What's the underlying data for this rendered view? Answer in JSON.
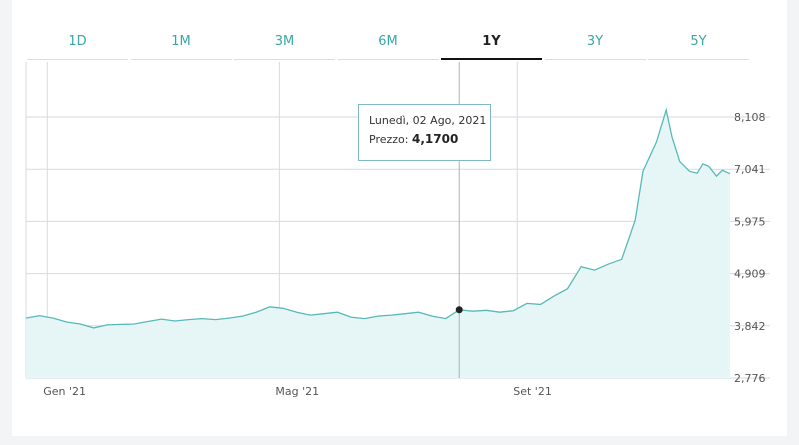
{
  "tabs": [
    "1D",
    "1M",
    "3M",
    "6M",
    "1Y",
    "3Y",
    "5Y"
  ],
  "active_tab": "1Y",
  "tooltip": {
    "date": "Lunedì, 02 Ago, 2021",
    "price_label": "Prezzo:",
    "price_value": "4,1700"
  },
  "colors": {
    "line": "#58b9b9",
    "fill": "#e6f6f6",
    "accent": "#3aa6a6",
    "grid": "#d5dbe0"
  },
  "chart_data": {
    "type": "area",
    "x_ticks": [
      {
        "x": "2021-01-01",
        "label": "Gen '21"
      },
      {
        "x": "2021-05-01",
        "label": "Mag '21"
      },
      {
        "x": "2021-09-01",
        "label": "Set '21"
      }
    ],
    "y_ticks": [
      "8,108",
      "7,041",
      "5,975",
      "4,909",
      "3,842",
      "2,776"
    ],
    "ylim": [
      2.776,
      8.108
    ],
    "xlim": [
      "2020-12-21",
      "2021-12-20"
    ],
    "highlight": {
      "x": "2021-08-02",
      "y": 4.17
    },
    "grid": true,
    "series": [
      {
        "points": [
          [
            "2020-12-21",
            4.0
          ],
          [
            "2020-12-28",
            4.05
          ],
          [
            "2021-01-04",
            4.0
          ],
          [
            "2021-01-11",
            3.92
          ],
          [
            "2021-01-18",
            3.88
          ],
          [
            "2021-01-25",
            3.8
          ],
          [
            "2021-02-01",
            3.86
          ],
          [
            "2021-02-08",
            3.87
          ],
          [
            "2021-02-15",
            3.88
          ],
          [
            "2021-02-22",
            3.93
          ],
          [
            "2021-03-01",
            3.98
          ],
          [
            "2021-03-08",
            3.94
          ],
          [
            "2021-03-15",
            3.97
          ],
          [
            "2021-03-22",
            3.99
          ],
          [
            "2021-03-29",
            3.97
          ],
          [
            "2021-04-05",
            4.0
          ],
          [
            "2021-04-12",
            4.04
          ],
          [
            "2021-04-19",
            4.12
          ],
          [
            "2021-04-26",
            4.23
          ],
          [
            "2021-05-03",
            4.2
          ],
          [
            "2021-05-10",
            4.12
          ],
          [
            "2021-05-17",
            4.06
          ],
          [
            "2021-05-24",
            4.09
          ],
          [
            "2021-05-31",
            4.12
          ],
          [
            "2021-06-07",
            4.02
          ],
          [
            "2021-06-14",
            3.99
          ],
          [
            "2021-06-21",
            4.04
          ],
          [
            "2021-06-28",
            4.06
          ],
          [
            "2021-07-05",
            4.09
          ],
          [
            "2021-07-12",
            4.12
          ],
          [
            "2021-07-19",
            4.04
          ],
          [
            "2021-07-26",
            3.99
          ],
          [
            "2021-08-02",
            4.17
          ],
          [
            "2021-08-09",
            4.14
          ],
          [
            "2021-08-16",
            4.16
          ],
          [
            "2021-08-23",
            4.12
          ],
          [
            "2021-08-30",
            4.15
          ],
          [
            "2021-09-06",
            4.3
          ],
          [
            "2021-09-13",
            4.28
          ],
          [
            "2021-09-20",
            4.45
          ],
          [
            "2021-09-27",
            4.6
          ],
          [
            "2021-10-04",
            5.05
          ],
          [
            "2021-10-11",
            4.98
          ],
          [
            "2021-10-18",
            5.1
          ],
          [
            "2021-10-25",
            5.2
          ],
          [
            "2021-11-01",
            6.0
          ],
          [
            "2021-11-05",
            7.0
          ],
          [
            "2021-11-12",
            7.6
          ],
          [
            "2021-11-17",
            8.25
          ],
          [
            "2021-11-20",
            7.7
          ],
          [
            "2021-11-24",
            7.2
          ],
          [
            "2021-11-29",
            7.0
          ],
          [
            "2021-12-03",
            6.96
          ],
          [
            "2021-12-06",
            7.15
          ],
          [
            "2021-12-09",
            7.1
          ],
          [
            "2021-12-13",
            6.9
          ],
          [
            "2021-12-16",
            7.02
          ],
          [
            "2021-12-20",
            6.95
          ]
        ]
      }
    ]
  }
}
